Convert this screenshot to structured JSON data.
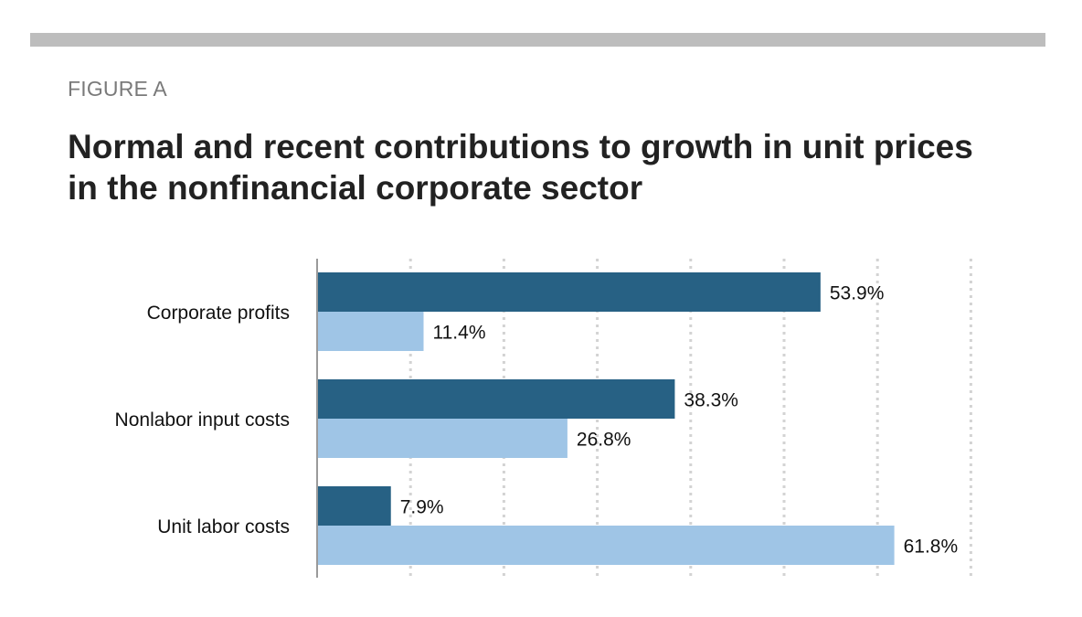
{
  "header": {
    "figure_label": "FIGURE A",
    "title": "Normal and recent contributions to growth in unit prices in the nonfinancial corporate sector"
  },
  "colors": {
    "series_dark": "#276184",
    "series_light": "#9fc5e6",
    "grid": "#d3d3d3",
    "axis": "#9a9a9a",
    "rule": "#bdbdbd"
  },
  "chart_data": {
    "type": "bar",
    "orientation": "horizontal",
    "categories": [
      "Corporate profits",
      "Nonlabor input costs",
      "Unit labor costs"
    ],
    "series": [
      {
        "values": [
          53.9,
          38.3,
          7.9
        ],
        "labels": [
          "53.9%",
          "38.3%",
          "7.9%"
        ],
        "color": "#276184"
      },
      {
        "values": [
          11.4,
          26.8,
          61.8
        ],
        "labels": [
          "11.4%",
          "26.8%",
          "61.8%"
        ],
        "color": "#9fc5e6"
      }
    ],
    "xlim": [
      0,
      70
    ],
    "grid_step": 10,
    "grid": true,
    "legend": "none"
  }
}
